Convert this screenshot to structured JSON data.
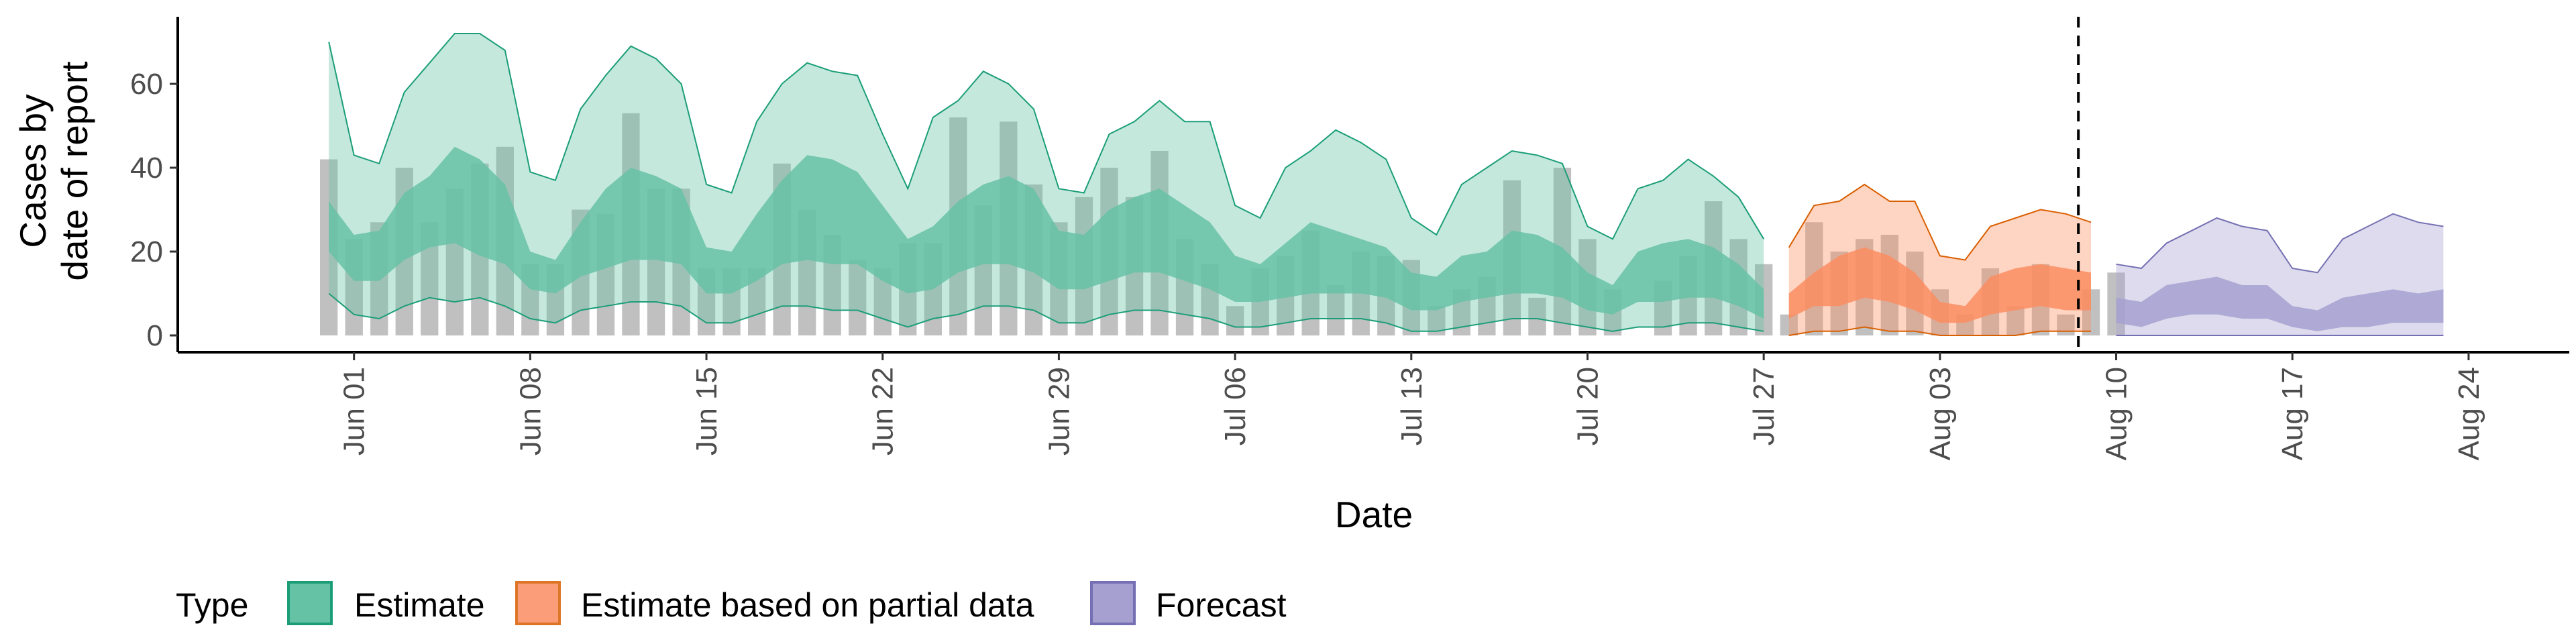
{
  "chart_data": {
    "type": "area",
    "xlabel": "Date",
    "ylabel_lines": [
      "Cases by",
      "date of report"
    ],
    "yticks": [
      0,
      20,
      40,
      60
    ],
    "ylim": [
      -4,
      76
    ],
    "xlim": [
      "2020-05-25",
      "2020-08-28"
    ],
    "xticks": [
      "Jun 01",
      "Jun 08",
      "Jun 15",
      "Jun 22",
      "Jun 29",
      "Jul 06",
      "Jul 13",
      "Jul 20",
      "Jul 27",
      "Aug 03",
      "Aug 10",
      "Aug 17",
      "Aug 24"
    ],
    "xtick_dates": [
      "2020-06-01",
      "2020-06-08",
      "2020-06-15",
      "2020-06-22",
      "2020-06-29",
      "2020-07-06",
      "2020-07-13",
      "2020-07-20",
      "2020-07-27",
      "2020-08-03",
      "2020-08-10",
      "2020-08-17",
      "2020-08-24"
    ],
    "forecast_date": "2020-08-09",
    "legend": {
      "title": "Type",
      "position": "bottom",
      "items": [
        {
          "label": "Estimate",
          "fill": "#66c2a5",
          "stroke": "#1b9e77"
        },
        {
          "label": "Estimate based on partial data",
          "fill": "#fc8d62",
          "stroke": "#d95f02"
        },
        {
          "label": "Forecast",
          "fill": "#a6a0d0",
          "stroke": "#7570b3"
        }
      ]
    },
    "colors": {
      "bars": "#bdbdbd",
      "estimate": "#1b9e77",
      "partial": "#d95f02",
      "forecast": "#7570b3"
    },
    "bars": {
      "start": "2020-05-31",
      "values": [
        42,
        23,
        27,
        40,
        27,
        35,
        41,
        45,
        17,
        17,
        30,
        29,
        53,
        35,
        35,
        16,
        16,
        16,
        41,
        30,
        24,
        18,
        16,
        22,
        22,
        52,
        31,
        51,
        36,
        27,
        33,
        40,
        33,
        44,
        23,
        17,
        7,
        16,
        19,
        25,
        12,
        20,
        19,
        18,
        7,
        11,
        14,
        37,
        9,
        40,
        23,
        11,
        0,
        13,
        19,
        32,
        23,
        17,
        5,
        27,
        20,
        23,
        24,
        20,
        11,
        5,
        16,
        7,
        17,
        5,
        11,
        15
      ]
    },
    "series": [
      {
        "name": "Estimate",
        "start": "2020-05-31",
        "outer_upper": [
          70,
          43,
          41,
          58,
          65,
          72,
          72,
          68,
          39,
          37,
          54,
          62,
          69,
          66,
          60,
          36,
          34,
          51,
          60,
          65,
          63,
          62,
          48,
          35,
          52,
          56,
          63,
          60,
          54,
          35,
          34,
          48,
          51,
          56,
          51,
          51,
          31,
          28,
          40,
          44,
          49,
          46,
          42,
          28,
          24,
          36,
          40,
          44,
          43,
          41,
          26,
          23,
          35,
          37,
          42,
          38,
          33,
          23
        ],
        "inner_upper": [
          32,
          24,
          25,
          34,
          38,
          45,
          42,
          36,
          20,
          18,
          27,
          35,
          40,
          38,
          35,
          21,
          20,
          29,
          37,
          43,
          42,
          39,
          31,
          23,
          26,
          32,
          36,
          38,
          35,
          25,
          24,
          30,
          33,
          35,
          31,
          27,
          19,
          17,
          22,
          27,
          25,
          23,
          21,
          15,
          14,
          19,
          20,
          25,
          24,
          21,
          15,
          12,
          20,
          22,
          23,
          21,
          17,
          11
        ],
        "inner_lower": [
          20,
          13,
          13,
          18,
          21,
          22,
          19,
          17,
          11,
          10,
          14,
          16,
          18,
          18,
          17,
          10,
          10,
          13,
          17,
          18,
          17,
          17,
          13,
          10,
          11,
          15,
          17,
          17,
          15,
          11,
          11,
          13,
          15,
          15,
          13,
          11,
          8,
          8,
          9,
          10,
          10,
          10,
          9,
          6,
          6,
          8,
          9,
          10,
          10,
          9,
          6,
          5,
          8,
          8,
          9,
          9,
          7,
          4
        ],
        "outer_lower": [
          10,
          5,
          4,
          7,
          9,
          8,
          9,
          7,
          4,
          3,
          6,
          7,
          8,
          8,
          7,
          3,
          3,
          5,
          7,
          7,
          6,
          6,
          4,
          2,
          4,
          5,
          7,
          7,
          6,
          3,
          3,
          5,
          6,
          6,
          5,
          4,
          2,
          2,
          3,
          4,
          4,
          4,
          3,
          1,
          1,
          2,
          3,
          4,
          4,
          3,
          2,
          1,
          2,
          2,
          3,
          3,
          2,
          1
        ]
      },
      {
        "name": "Estimate based on partial data",
        "start": "2020-07-28",
        "outer_upper": [
          21,
          31,
          32,
          36,
          32,
          32,
          19,
          18,
          26,
          28,
          30,
          29,
          27
        ],
        "inner_upper": [
          10,
          15,
          19,
          21,
          19,
          15,
          8,
          7,
          14,
          16,
          17,
          16,
          15
        ],
        "inner_lower": [
          4,
          7,
          7,
          9,
          8,
          6,
          3,
          3,
          5,
          6,
          7,
          6,
          6
        ],
        "outer_lower": [
          0,
          1,
          1,
          2,
          1,
          1,
          0,
          0,
          0,
          0,
          1,
          1,
          1
        ]
      },
      {
        "name": "Forecast",
        "start": "2020-08-10",
        "outer_upper": [
          17,
          16,
          22,
          25,
          28,
          26,
          25,
          16,
          15,
          23,
          26,
          29,
          27,
          26
        ],
        "inner_upper": [
          9,
          8,
          12,
          13,
          14,
          12,
          12,
          7,
          6,
          9,
          10,
          11,
          10,
          11
        ],
        "inner_lower": [
          3,
          2,
          4,
          5,
          5,
          4,
          4,
          2,
          1,
          2,
          2,
          3,
          3,
          3
        ],
        "outer_lower": [
          0,
          0,
          0,
          0,
          0,
          0,
          0,
          0,
          0,
          0,
          0,
          0,
          0,
          0
        ]
      }
    ]
  }
}
